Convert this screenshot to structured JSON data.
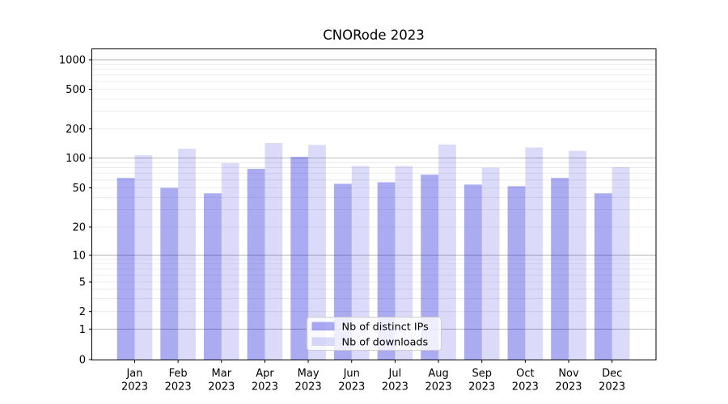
{
  "figure": {
    "background": "#ffffff"
  },
  "chart_data": {
    "type": "bar",
    "title": "CNORode 2023",
    "categories": [
      "Jan 2023",
      "Feb 2023",
      "Mar 2023",
      "Apr 2023",
      "May 2023",
      "Jun 2023",
      "Jul 2023",
      "Aug 2023",
      "Sep 2023",
      "Oct 2023",
      "Nov 2023",
      "Dec 2023"
    ],
    "x": {
      "months": [
        "Jan",
        "Feb",
        "Mar",
        "Apr",
        "May",
        "Jun",
        "Jul",
        "Aug",
        "Sep",
        "Oct",
        "Nov",
        "Dec"
      ],
      "year": "2023"
    },
    "series": [
      {
        "name": "Nb of distinct IPs",
        "color": "#0d0dd9",
        "opacity": 0.35,
        "blended_color": "#aaaaf2",
        "values": [
          63,
          50,
          44,
          78,
          103,
          55,
          57,
          68,
          54,
          52,
          63,
          44
        ]
      },
      {
        "name": "Nb of downloads",
        "color": "#0d0dd9",
        "opacity": 0.15,
        "blended_color": "#dbdbfa",
        "values": [
          107,
          125,
          89,
          143,
          137,
          83,
          83,
          138,
          80,
          129,
          119,
          81
        ]
      }
    ],
    "yscale": "symlog",
    "y_ticks": [
      0,
      1,
      2,
      5,
      10,
      20,
      50,
      100,
      200,
      500,
      1000
    ],
    "ylim": [
      0,
      1300
    ],
    "grid": true,
    "legend": {
      "position": "lower center",
      "entries": [
        "Nb of distinct IPs",
        "Nb of downloads"
      ]
    },
    "colors": {
      "grid_major": "#b2b2b2",
      "grid_minor": "#e8e8e8",
      "axis": "#000000",
      "text": "#000000",
      "legend_border": "#cccccc",
      "legend_background": "#ffffff"
    }
  }
}
